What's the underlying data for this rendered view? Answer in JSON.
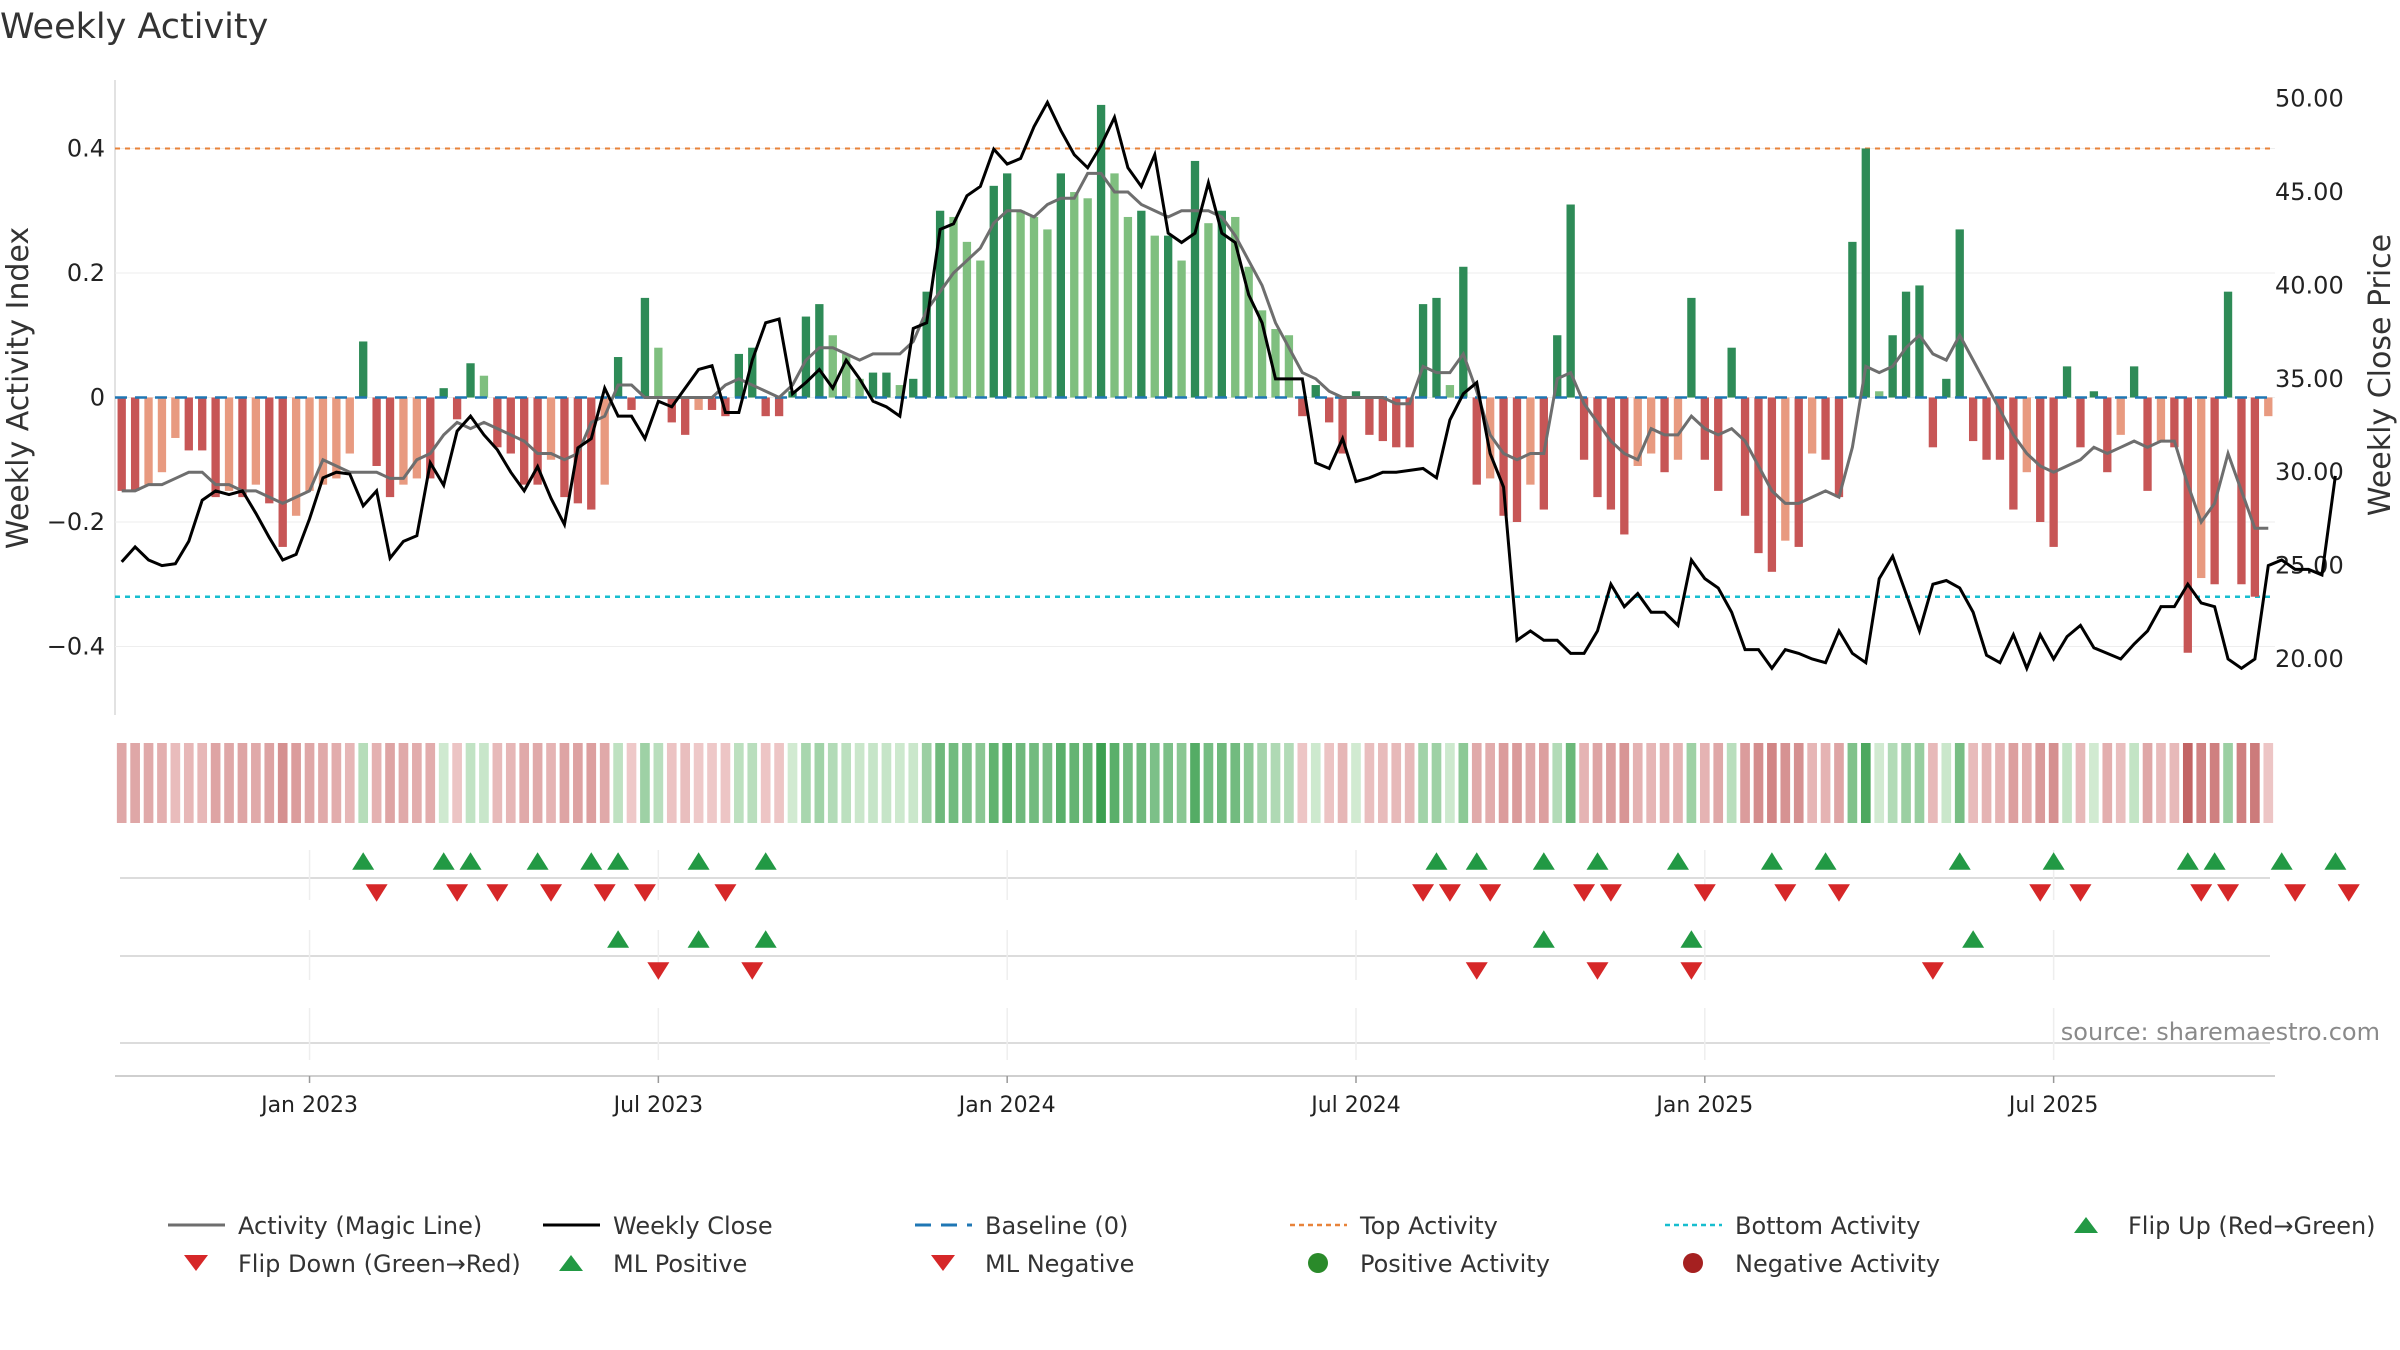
{
  "title": "Weekly Activity",
  "source": "source: sharemaestro.com",
  "colors": {
    "pos_strong": "#2e8b57",
    "pos_light": "#7fbf7f",
    "neg_strong": "#c75656",
    "neg_light": "#e89a80",
    "magic_line": "#6e6e6e",
    "close_line": "#000000",
    "baseline": "#1f77b4",
    "top_line": "#e8833a",
    "bottom_line": "#17becf",
    "flip_up": "#229944",
    "flip_down": "#d62728",
    "ml_pos": "#229944",
    "ml_neg": "#d62728",
    "pos_dot": "#2a8a2a",
    "neg_dot": "#a52020"
  },
  "chart_data": {
    "type": "bar",
    "title": "Weekly Activity",
    "ylabel": "Weekly Activity Index",
    "y2label": "Weekly Close Price",
    "ylim": [
      -0.51,
      0.51
    ],
    "y2lim": [
      17.0,
      51.0
    ],
    "yticks": [
      {
        "value": -0.4,
        "label": "−0.4"
      },
      {
        "value": -0.2,
        "label": "−0.2"
      },
      {
        "value": 0,
        "label": "0"
      },
      {
        "value": 0.2,
        "label": "0.2"
      },
      {
        "value": 0.4,
        "label": "0.4"
      }
    ],
    "y2ticks": [
      {
        "value": 20,
        "label": "20.00"
      },
      {
        "value": 25,
        "label": "25.00"
      },
      {
        "value": 30,
        "label": "30.00"
      },
      {
        "value": 35,
        "label": "35.00"
      },
      {
        "value": 40,
        "label": "40.00"
      },
      {
        "value": 45,
        "label": "45.00"
      },
      {
        "value": 50,
        "label": "50.00"
      }
    ],
    "xticks": [
      {
        "week": 14,
        "label": "Jan 2023"
      },
      {
        "week": 40,
        "label": "Jul 2023"
      },
      {
        "week": 66,
        "label": "Jan 2024"
      },
      {
        "week": 92,
        "label": "Jul 2024"
      },
      {
        "week": 118,
        "label": "Jan 2025"
      },
      {
        "week": 144,
        "label": "Jul 2025"
      }
    ],
    "top_activity": 0.4,
    "bottom_activity": -0.32,
    "baseline": 0,
    "activity": [
      -0.15,
      -0.15,
      -0.14,
      -0.12,
      -0.065,
      -0.085,
      -0.085,
      -0.16,
      -0.15,
      -0.16,
      -0.14,
      -0.17,
      -0.24,
      -0.19,
      -0.15,
      -0.14,
      -0.13,
      -0.09,
      0.09,
      -0.11,
      -0.16,
      -0.14,
      -0.13,
      -0.13,
      0.015,
      -0.035,
      0.055,
      0.035,
      -0.08,
      -0.09,
      -0.14,
      -0.14,
      -0.1,
      -0.16,
      -0.17,
      -0.18,
      -0.14,
      0.065,
      -0.02,
      0.16,
      0.08,
      -0.04,
      -0.06,
      -0.02,
      -0.02,
      -0.03,
      0.07,
      0.08,
      -0.03,
      -0.03,
      0.01,
      0.13,
      0.15,
      0.1,
      0.07,
      0.03,
      0.04,
      0.04,
      0.02,
      0.03,
      0.17,
      0.3,
      0.29,
      0.25,
      0.22,
      0.34,
      0.36,
      0.3,
      0.29,
      0.27,
      0.36,
      0.33,
      0.32,
      0.47,
      0.36,
      0.29,
      0.3,
      0.26,
      0.26,
      0.22,
      0.38,
      0.28,
      0.3,
      0.29,
      0.21,
      0.14,
      0.11,
      0.1,
      -0.03,
      0.02,
      -0.04,
      -0.09,
      0.01,
      -0.06,
      -0.07,
      -0.08,
      -0.08,
      0.15,
      0.16,
      0.02,
      0.21,
      -0.14,
      -0.13,
      -0.19,
      -0.2,
      -0.14,
      -0.18,
      0.1,
      0.31,
      -0.1,
      -0.16,
      -0.18,
      -0.22,
      -0.11,
      -0.09,
      -0.12,
      -0.1,
      0.16,
      -0.1,
      -0.15,
      0.08,
      -0.19,
      -0.25,
      -0.28,
      -0.23,
      -0.24,
      -0.09,
      -0.1,
      -0.16,
      0.25,
      0.4,
      0.01,
      0.1,
      0.17,
      0.18,
      -0.08,
      0.03,
      0.27,
      -0.07,
      -0.1,
      -0.1,
      -0.18,
      -0.12,
      -0.2,
      -0.24,
      0.05,
      -0.08,
      0.01,
      -0.12,
      -0.06,
      0.05,
      -0.15,
      -0.07,
      -0.08,
      -0.41,
      -0.29,
      -0.3,
      0.17,
      -0.3,
      -0.32,
      -0.03
    ],
    "magic_line": [
      -0.15,
      -0.15,
      -0.14,
      -0.14,
      -0.13,
      -0.12,
      -0.12,
      -0.14,
      -0.14,
      -0.15,
      -0.15,
      -0.16,
      -0.17,
      -0.16,
      -0.15,
      -0.1,
      -0.11,
      -0.12,
      -0.12,
      -0.12,
      -0.13,
      -0.13,
      -0.1,
      -0.09,
      -0.06,
      -0.04,
      -0.05,
      -0.04,
      -0.05,
      -0.06,
      -0.07,
      -0.09,
      -0.09,
      -0.1,
      -0.09,
      -0.04,
      -0.03,
      0.02,
      0.02,
      0,
      0,
      0,
      0,
      0,
      0,
      0.02,
      0.03,
      0.02,
      0.01,
      0,
      0.02,
      0.06,
      0.08,
      0.08,
      0.07,
      0.06,
      0.07,
      0.07,
      0.07,
      0.09,
      0.14,
      0.17,
      0.2,
      0.22,
      0.24,
      0.28,
      0.3,
      0.3,
      0.29,
      0.31,
      0.32,
      0.32,
      0.36,
      0.36,
      0.33,
      0.33,
      0.31,
      0.3,
      0.29,
      0.3,
      0.3,
      0.3,
      0.29,
      0.26,
      0.22,
      0.18,
      0.12,
      0.08,
      0.04,
      0.03,
      0.01,
      0,
      0,
      0,
      0,
      -0.01,
      -0.01,
      0.05,
      0.04,
      0.04,
      0.07,
      0.01,
      -0.06,
      -0.09,
      -0.1,
      -0.09,
      -0.09,
      0.03,
      0.04,
      -0.01,
      -0.04,
      -0.07,
      -0.09,
      -0.1,
      -0.05,
      -0.06,
      -0.06,
      -0.03,
      -0.05,
      -0.06,
      -0.05,
      -0.07,
      -0.11,
      -0.15,
      -0.17,
      -0.17,
      -0.16,
      -0.15,
      -0.16,
      -0.08,
      0.05,
      0.04,
      0.05,
      0.08,
      0.1,
      0.07,
      0.06,
      0.1,
      0.06,
      0.02,
      -0.02,
      -0.06,
      -0.09,
      -0.11,
      -0.12,
      -0.11,
      -0.1,
      -0.08,
      -0.09,
      -0.08,
      -0.07,
      -0.08,
      -0.07,
      -0.07,
      -0.14,
      -0.2,
      -0.17,
      -0.09,
      -0.15,
      -0.21,
      -0.21
    ],
    "weekly_close": [
      25.2,
      26.0,
      25.3,
      25.0,
      25.1,
      26.3,
      28.5,
      29.0,
      28.8,
      29.0,
      27.8,
      26.5,
      25.3,
      25.6,
      27.5,
      29.7,
      30.0,
      29.9,
      28.2,
      29.0,
      25.4,
      26.3,
      26.6,
      30.5,
      29.3,
      32.2,
      33.0,
      32.0,
      31.2,
      30.0,
      29.0,
      30.3,
      28.6,
      27.2,
      31.3,
      31.8,
      34.5,
      33.0,
      33.0,
      31.8,
      33.8,
      33.5,
      34.5,
      35.5,
      35.7,
      33.2,
      33.2,
      36.0,
      38.0,
      38.2,
      34.2,
      34.8,
      35.5,
      34.5,
      36.0,
      35.0,
      33.8,
      33.5,
      33.0,
      37.7,
      38.0,
      43.0,
      43.3,
      44.8,
      45.3,
      47.3,
      46.5,
      46.8,
      48.5,
      49.8,
      48.3,
      47.0,
      46.3,
      47.5,
      49.0,
      46.3,
      45.3,
      47.0,
      42.8,
      42.3,
      42.8,
      45.5,
      42.8,
      42.3,
      39.5,
      38.0,
      35.0,
      35.0,
      35.0,
      30.5,
      30.2,
      31.8,
      29.5,
      29.7,
      30.0,
      30.0,
      30.1,
      30.2,
      29.7,
      32.8,
      34.2,
      34.8,
      31.0,
      29.2,
      21.0,
      21.5,
      21.0,
      21.0,
      20.3,
      20.3,
      21.5,
      24.0,
      22.8,
      23.5,
      22.5,
      22.5,
      21.8,
      25.3,
      24.3,
      23.8,
      22.5,
      20.5,
      20.5,
      19.5,
      20.5,
      20.3,
      20.0,
      19.8,
      21.5,
      20.3,
      19.8,
      24.3,
      25.5,
      23.5,
      21.5,
      24.0,
      24.2,
      23.8,
      22.5,
      20.2,
      19.8,
      21.3,
      19.5,
      21.3,
      20.0,
      21.2,
      21.8,
      20.6,
      20.3,
      20.0,
      20.8,
      21.5,
      22.8,
      22.8,
      24.0,
      23.0,
      22.8,
      20.0,
      19.5,
      20.0,
      25.0,
      25.3,
      24.8,
      24.8,
      24.5,
      29.8
    ],
    "flip_up": [
      18,
      24,
      26,
      31,
      35,
      37,
      43,
      48,
      98,
      101,
      106,
      110,
      116,
      123,
      127,
      137,
      144,
      154,
      156,
      161,
      165
    ],
    "flip_down": [
      19,
      25,
      28,
      32,
      36,
      39,
      45,
      97,
      99,
      102,
      109,
      111,
      118,
      124,
      128,
      143,
      146,
      155,
      157,
      162,
      166
    ],
    "ml_positive": [
      37,
      43,
      48,
      106,
      117,
      138
    ],
    "ml_negative": [
      40,
      47,
      101,
      110,
      117,
      135
    ],
    "legend": [
      {
        "key": "magic",
        "label": "Activity (Magic Line)"
      },
      {
        "key": "close",
        "label": "Weekly Close"
      },
      {
        "key": "baseline",
        "label": "Baseline (0)"
      },
      {
        "key": "top",
        "label": "Top Activity"
      },
      {
        "key": "bottom",
        "label": "Bottom Activity"
      },
      {
        "key": "flipup",
        "label": "Flip Up (Red→Green)"
      },
      {
        "key": "flipdown",
        "label": "Flip Down (Green→Red)"
      },
      {
        "key": "mlpos",
        "label": "ML Positive"
      },
      {
        "key": "mlneg",
        "label": "ML Negative"
      },
      {
        "key": "posact",
        "label": "Positive Activity"
      },
      {
        "key": "negact",
        "label": "Negative Activity"
      }
    ]
  }
}
